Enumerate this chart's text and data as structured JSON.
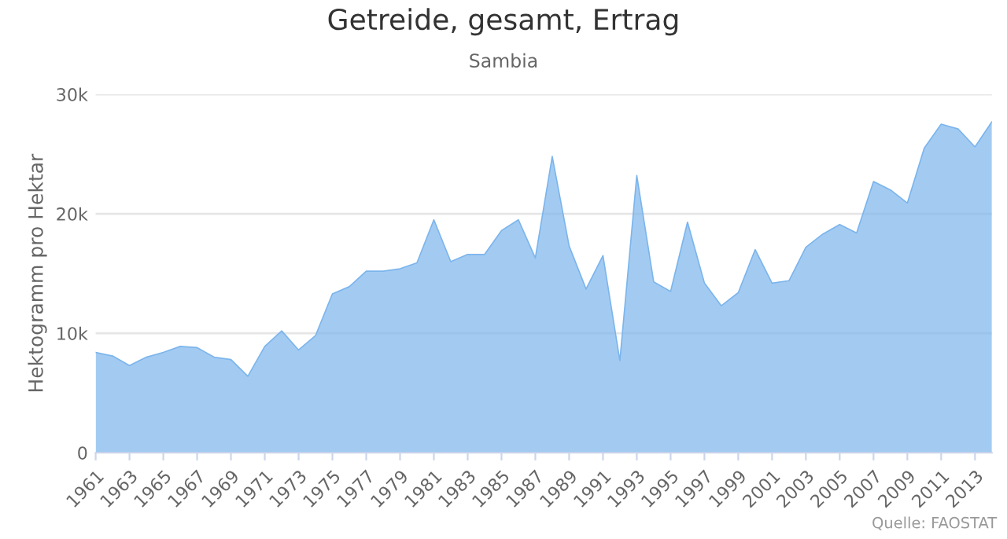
{
  "chart_data": {
    "type": "area",
    "title": "Getreide, gesamt, Ertrag",
    "subtitle": "Sambia",
    "ylabel": "Hektogramm pro Hektar",
    "annotations": [
      "Quelle: FAOSTAT"
    ],
    "x": [
      1961,
      1962,
      1963,
      1964,
      1965,
      1966,
      1967,
      1968,
      1969,
      1970,
      1971,
      1972,
      1973,
      1974,
      1975,
      1976,
      1977,
      1978,
      1979,
      1980,
      1981,
      1982,
      1983,
      1984,
      1985,
      1986,
      1987,
      1988,
      1989,
      1990,
      1991,
      1992,
      1993,
      1994,
      1995,
      1996,
      1997,
      1998,
      1999,
      2000,
      2001,
      2002,
      2003,
      2004,
      2005,
      2006,
      2007,
      2008,
      2009,
      2010,
      2011,
      2012,
      2013,
      2014
    ],
    "series": [
      {
        "color": "#7cb5ec",
        "values": [
          8400,
          8100,
          7300,
          8000,
          8400,
          8900,
          8800,
          8000,
          7800,
          6400,
          8900,
          10200,
          8600,
          9800,
          13300,
          13900,
          15200,
          15200,
          15400,
          15900,
          19500,
          16000,
          16600,
          16600,
          18600,
          19500,
          16300,
          24800,
          17300,
          13700,
          16500,
          7700,
          23200,
          14300,
          13500,
          19300,
          14200,
          12300,
          13400,
          17000,
          14200,
          14400,
          17200,
          18300,
          19100,
          18400,
          22700,
          22000,
          20900,
          25500,
          27500,
          27100,
          25600,
          27700
        ]
      }
    ],
    "xlim": [
      1961,
      2014
    ],
    "xticks": [
      1961,
      1963,
      1965,
      1967,
      1969,
      1971,
      1973,
      1975,
      1977,
      1979,
      1981,
      1983,
      1985,
      1987,
      1989,
      1991,
      1993,
      1995,
      1997,
      1999,
      2001,
      2003,
      2005,
      2007,
      2009,
      2011,
      2013
    ],
    "ylim": [
      0,
      30000
    ],
    "yticks": [
      {
        "value": 0,
        "label": "0"
      },
      {
        "value": 10000,
        "label": "10k"
      },
      {
        "value": 20000,
        "label": "20k"
      },
      {
        "value": 30000,
        "label": "30k"
      }
    ],
    "grid": "y",
    "legend": false
  }
}
